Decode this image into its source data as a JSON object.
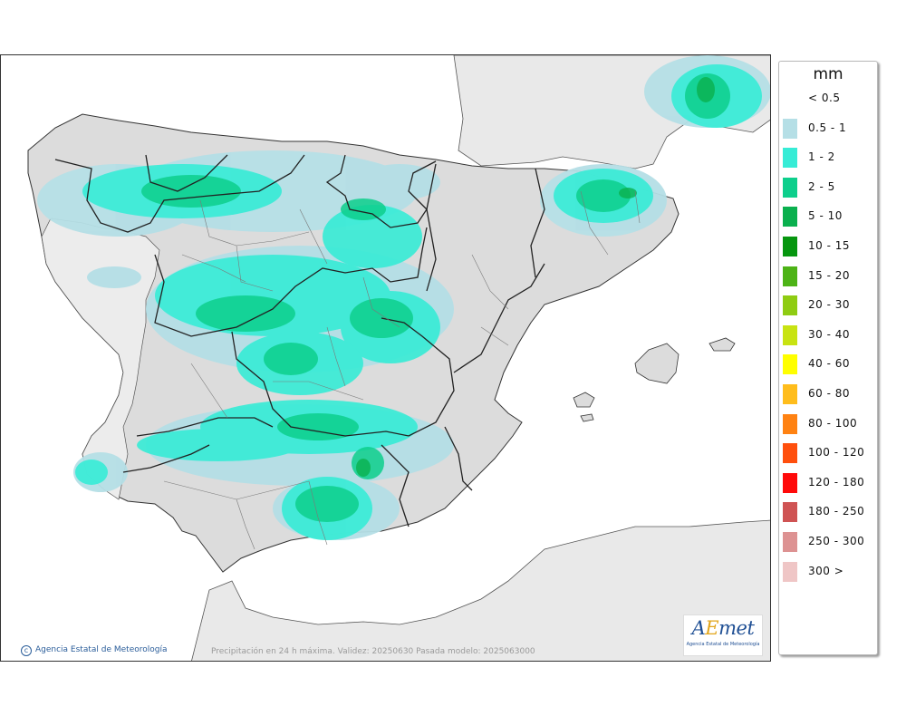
{
  "map": {
    "units": "mm",
    "caption": "Precipitación en 24 h máxima. Validez: 20250630 Pasada modelo: 2025063000",
    "copyright": "Agencia Estatal de Meteorología",
    "copyright_icon": "copyright-icon",
    "logo_text": "AEmet",
    "logo_subtext": "Agencia Estatal de Meteorología",
    "land_color": "#e9e9e9",
    "relief_color": "#d4d4d4",
    "sea_color": "#ffffff"
  },
  "legend": {
    "title": "mm",
    "items": [
      {
        "label": "< 0.5",
        "color": null
      },
      {
        "label": "0.5 - 1",
        "color": "#b5dfe6"
      },
      {
        "label": "1 - 2",
        "color": "#36ecd6"
      },
      {
        "label": "2 - 5",
        "color": "#0dcf8c"
      },
      {
        "label": "5 - 10",
        "color": "#0ab04e"
      },
      {
        "label": "10 - 15",
        "color": "#06960f"
      },
      {
        "label": "15 - 20",
        "color": "#4db316"
      },
      {
        "label": "20 - 30",
        "color": "#8fcc12"
      },
      {
        "label": "30 - 40",
        "color": "#c8e312"
      },
      {
        "label": "40 - 60",
        "color": "#ffff00"
      },
      {
        "label": "60 - 80",
        "color": "#ffbd1c"
      },
      {
        "label": "80 - 100",
        "color": "#ff8212"
      },
      {
        "label": "100 - 120",
        "color": "#ff4f0d"
      },
      {
        "label": "120 - 180",
        "color": "#ff0a0a"
      },
      {
        "label": "180 - 250",
        "color": "#cf5353"
      },
      {
        "label": "250 - 300",
        "color": "#dd9292"
      },
      {
        "label": "300 >",
        "color": "#efc6c6"
      }
    ]
  }
}
